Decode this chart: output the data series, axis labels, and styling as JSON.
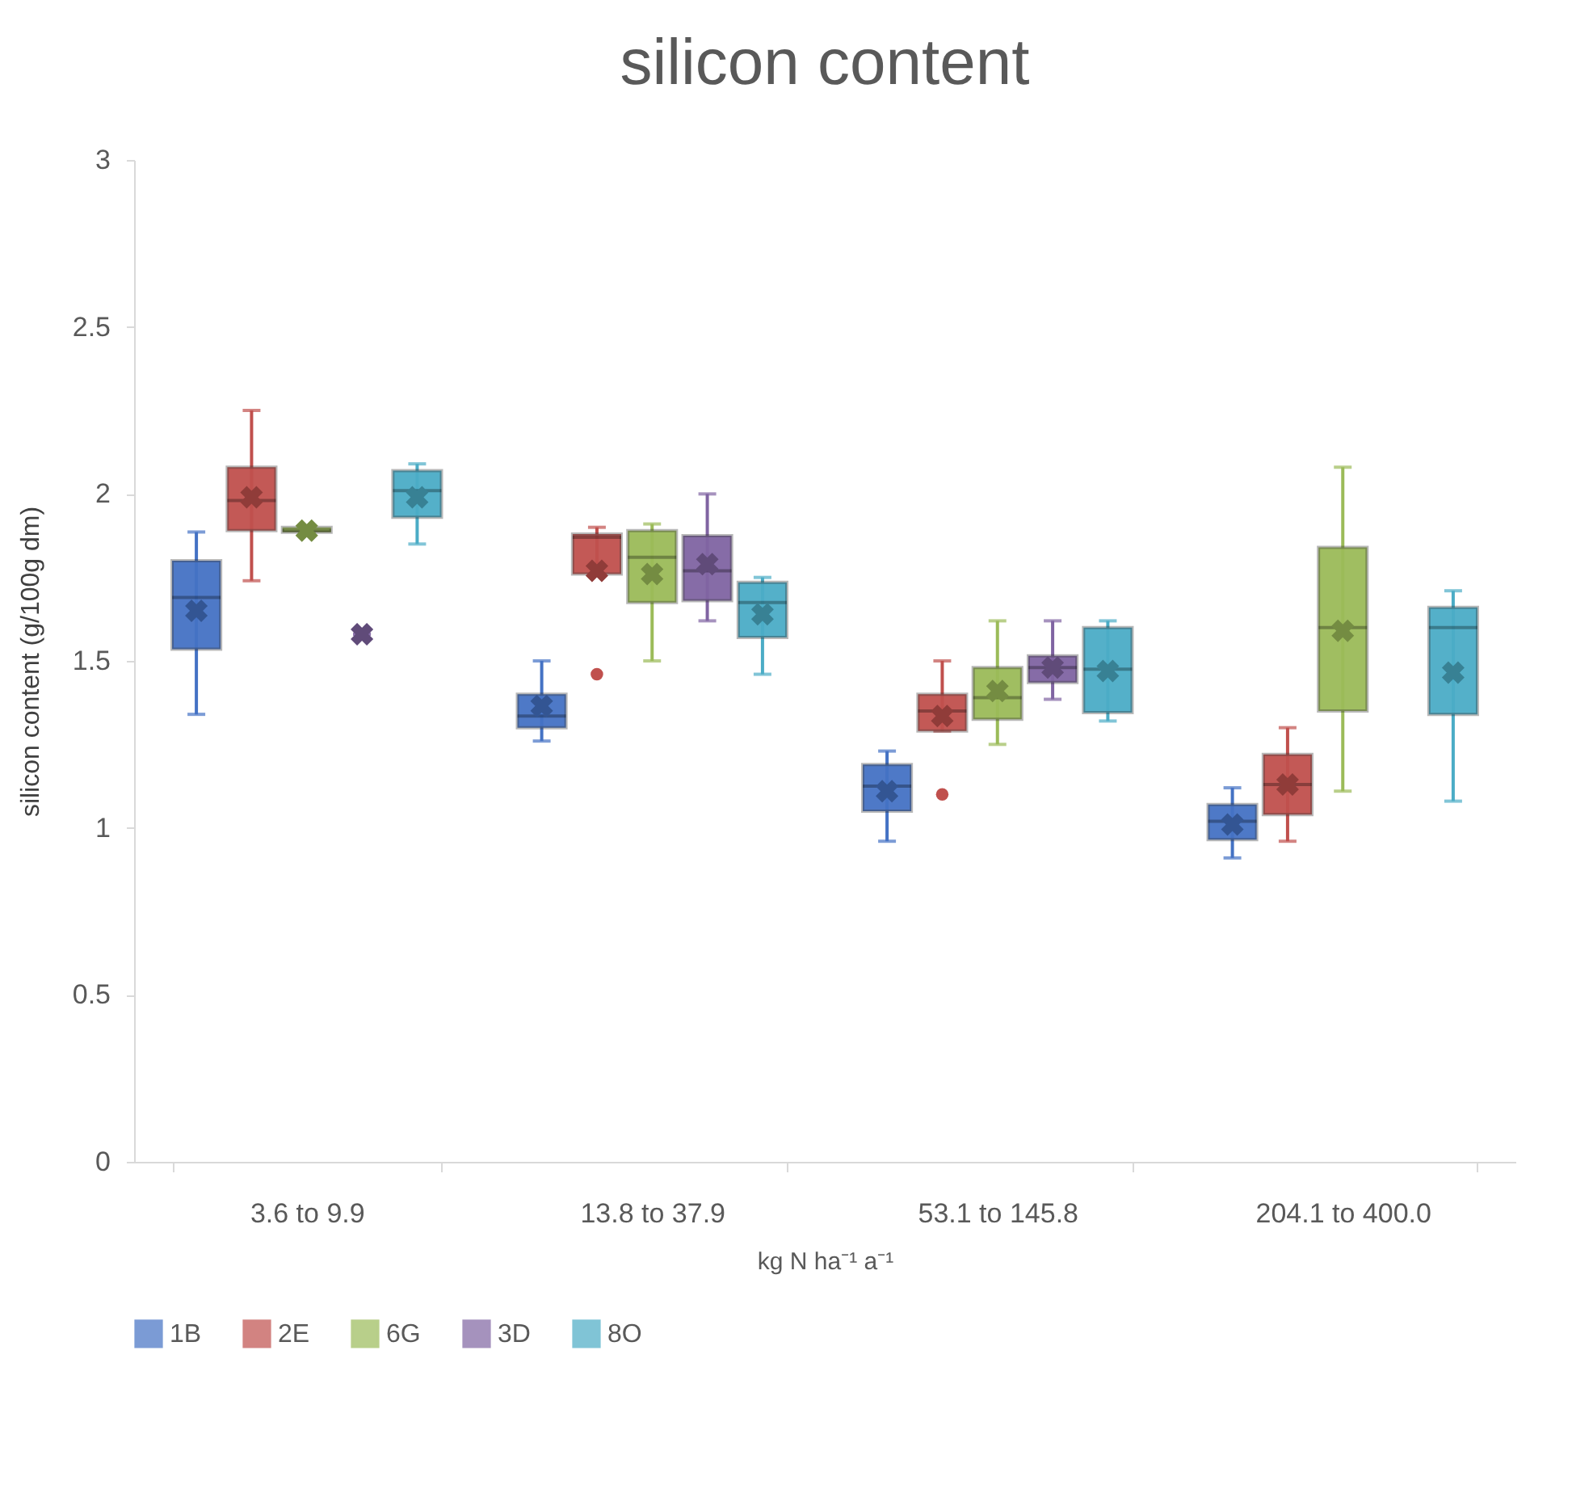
{
  "chart_data": {
    "type": "box",
    "title": "silicon content",
    "xlabel": "kg N ha⁻¹ a⁻¹",
    "ylabel": "silicon content (g/100g dm)",
    "categories": [
      "3.6 to 9.9",
      "13.8 to 37.9",
      "53.1 to 145.8",
      "204.1 to 400.0"
    ],
    "ylim": [
      0,
      3
    ],
    "yticks": [
      0,
      0.5,
      1,
      1.5,
      2,
      2.5,
      3
    ],
    "grid": false,
    "legend": "bottom",
    "series": [
      {
        "name": "1B",
        "color": "#4472c4",
        "boxes": [
          {
            "low": 1.34,
            "q1": 1.535,
            "median": 1.69,
            "q3": 1.8,
            "high": 1.886,
            "mean": 1.65
          },
          {
            "low": 1.26,
            "q1": 1.3,
            "median": 1.335,
            "q3": 1.4,
            "high": 1.5,
            "mean": 1.365
          },
          {
            "low": 0.96,
            "q1": 1.05,
            "median": 1.125,
            "q3": 1.19,
            "high": 1.23,
            "mean": 1.11
          },
          {
            "low": 0.91,
            "q1": 0.965,
            "median": 1.02,
            "q3": 1.07,
            "high": 1.12,
            "mean": 1.01
          }
        ]
      },
      {
        "name": "2E",
        "color": "#c0504d",
        "boxes": [
          {
            "low": 1.74,
            "q1": 1.89,
            "median": 1.98,
            "q3": 2.08,
            "high": 2.25,
            "mean": 1.99
          },
          {
            "low": 1.76,
            "q1": 1.76,
            "median": 1.87,
            "q3": 1.88,
            "high": 1.9,
            "mean": 1.77,
            "outliers": [
              1.46
            ]
          },
          {
            "low": 1.29,
            "q1": 1.29,
            "median": 1.35,
            "q3": 1.4,
            "high": 1.5,
            "mean": 1.335,
            "outliers": [
              1.1
            ]
          },
          {
            "low": 0.96,
            "q1": 1.04,
            "median": 1.13,
            "q3": 1.22,
            "high": 1.3,
            "mean": 1.13
          }
        ]
      },
      {
        "name": "6G",
        "color": "#9bbb59",
        "boxes": [
          {
            "low": 1.88,
            "q1": 1.885,
            "median": 1.89,
            "q3": 1.9,
            "high": 1.9,
            "mean": 1.89
          },
          {
            "low": 1.5,
            "q1": 1.675,
            "median": 1.81,
            "q3": 1.89,
            "high": 1.91,
            "mean": 1.76
          },
          {
            "low": 1.25,
            "q1": 1.325,
            "median": 1.39,
            "q3": 1.48,
            "high": 1.62,
            "mean": 1.41
          },
          {
            "low": 1.11,
            "q1": 1.35,
            "median": 1.6,
            "q3": 1.84,
            "high": 2.08,
            "mean": 1.59
          }
        ]
      },
      {
        "name": "3D",
        "color": "#8064a2",
        "boxes": [
          {
            "low": 1.58,
            "q1": 1.58,
            "median": 1.58,
            "q3": 1.58,
            "high": 1.58,
            "mean": 1.58
          },
          {
            "low": 1.62,
            "q1": 1.68,
            "median": 1.77,
            "q3": 1.875,
            "high": 2.0,
            "mean": 1.79
          },
          {
            "low": 1.385,
            "q1": 1.435,
            "median": 1.48,
            "q3": 1.515,
            "high": 1.62,
            "mean": 1.48
          },
          null
        ]
      },
      {
        "name": "8O",
        "color": "#4bacc6",
        "boxes": [
          {
            "low": 1.85,
            "q1": 1.93,
            "median": 2.01,
            "q3": 2.07,
            "high": 2.09,
            "mean": 1.99
          },
          {
            "low": 1.46,
            "q1": 1.57,
            "median": 1.675,
            "q3": 1.735,
            "high": 1.75,
            "mean": 1.64
          },
          {
            "low": 1.32,
            "q1": 1.345,
            "median": 1.475,
            "q3": 1.6,
            "high": 1.62,
            "mean": 1.47
          },
          {
            "low": 1.08,
            "q1": 1.34,
            "median": 1.6,
            "q3": 1.66,
            "high": 1.71,
            "mean": 1.465
          }
        ]
      }
    ]
  }
}
